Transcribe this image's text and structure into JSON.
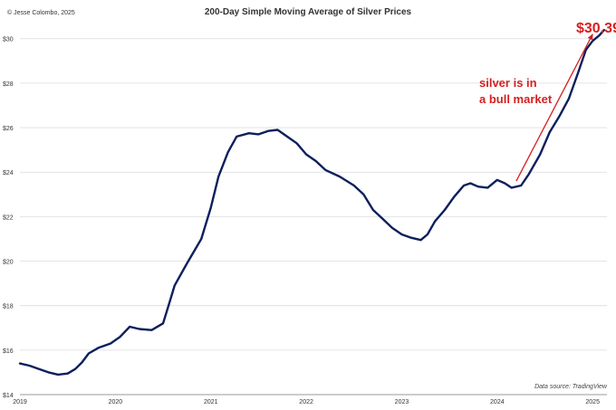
{
  "credit": "© Jesse Colombo, 2025",
  "source": "Data source: TradingView",
  "colors": {
    "line": "#0d1f5c",
    "annotation": "#d61f1f",
    "grid": "#dcdcdc"
  },
  "chart_data": {
    "type": "line",
    "title": "200-Day Simple Moving Average of Silver Prices",
    "xlabel": "",
    "ylabel": "",
    "xlim": [
      2019.0,
      2025.15
    ],
    "ylim": [
      14,
      30.6
    ],
    "grid": true,
    "yticks": [
      14,
      16,
      18,
      20,
      22,
      24,
      26,
      28,
      30
    ],
    "ytick_labels": [
      "$14",
      "$16",
      "$18",
      "$20",
      "$22",
      "$24",
      "$26",
      "$28",
      "$30"
    ],
    "xticks": [
      2019,
      2020,
      2021,
      2022,
      2023,
      2024,
      2025
    ],
    "xtick_labels": [
      "2019",
      "2020",
      "2021",
      "2022",
      "2023",
      "2024",
      "2025"
    ],
    "series": [
      {
        "points": [
          [
            2019.0,
            15.4
          ],
          [
            2019.1,
            15.3
          ],
          [
            2019.2,
            15.15
          ],
          [
            2019.3,
            15.0
          ],
          [
            2019.4,
            14.9
          ],
          [
            2019.5,
            14.95
          ],
          [
            2019.58,
            15.15
          ],
          [
            2019.65,
            15.45
          ],
          [
            2019.72,
            15.85
          ],
          [
            2019.82,
            16.1
          ],
          [
            2019.95,
            16.3
          ],
          [
            2020.05,
            16.6
          ],
          [
            2020.15,
            17.05
          ],
          [
            2020.25,
            16.95
          ],
          [
            2020.38,
            16.9
          ],
          [
            2020.5,
            17.2
          ],
          [
            2020.55,
            17.9
          ],
          [
            2020.62,
            18.9
          ],
          [
            2020.75,
            19.9
          ],
          [
            2020.9,
            21.0
          ],
          [
            2021.0,
            22.4
          ],
          [
            2021.08,
            23.8
          ],
          [
            2021.18,
            24.9
          ],
          [
            2021.27,
            25.6
          ],
          [
            2021.4,
            25.75
          ],
          [
            2021.5,
            25.7
          ],
          [
            2021.6,
            25.85
          ],
          [
            2021.7,
            25.9
          ],
          [
            2021.8,
            25.6
          ],
          [
            2021.9,
            25.3
          ],
          [
            2022.0,
            24.8
          ],
          [
            2022.1,
            24.5
          ],
          [
            2022.2,
            24.1
          ],
          [
            2022.35,
            23.8
          ],
          [
            2022.5,
            23.4
          ],
          [
            2022.6,
            23.0
          ],
          [
            2022.7,
            22.3
          ],
          [
            2022.8,
            21.9
          ],
          [
            2022.9,
            21.5
          ],
          [
            2023.0,
            21.2
          ],
          [
            2023.1,
            21.05
          ],
          [
            2023.2,
            20.95
          ],
          [
            2023.27,
            21.2
          ],
          [
            2023.35,
            21.8
          ],
          [
            2023.45,
            22.3
          ],
          [
            2023.55,
            22.9
          ],
          [
            2023.65,
            23.4
          ],
          [
            2023.72,
            23.5
          ],
          [
            2023.8,
            23.35
          ],
          [
            2023.9,
            23.3
          ],
          [
            2024.0,
            23.65
          ],
          [
            2024.08,
            23.5
          ],
          [
            2024.15,
            23.3
          ],
          [
            2024.25,
            23.4
          ],
          [
            2024.33,
            23.9
          ],
          [
            2024.45,
            24.8
          ],
          [
            2024.55,
            25.8
          ],
          [
            2024.65,
            26.5
          ],
          [
            2024.75,
            27.3
          ],
          [
            2024.85,
            28.5
          ],
          [
            2024.93,
            29.5
          ],
          [
            2025.0,
            29.9
          ],
          [
            2025.07,
            30.15
          ],
          [
            2025.12,
            30.39
          ]
        ]
      }
    ],
    "annotations": [
      {
        "text_lines": [
          "silver is in",
          "a bull market"
        ],
        "arrow_from": [
          2024.2,
          23.6
        ],
        "arrow_to": [
          2025.0,
          30.2
        ]
      },
      {
        "text": "$30.39"
      }
    ]
  }
}
